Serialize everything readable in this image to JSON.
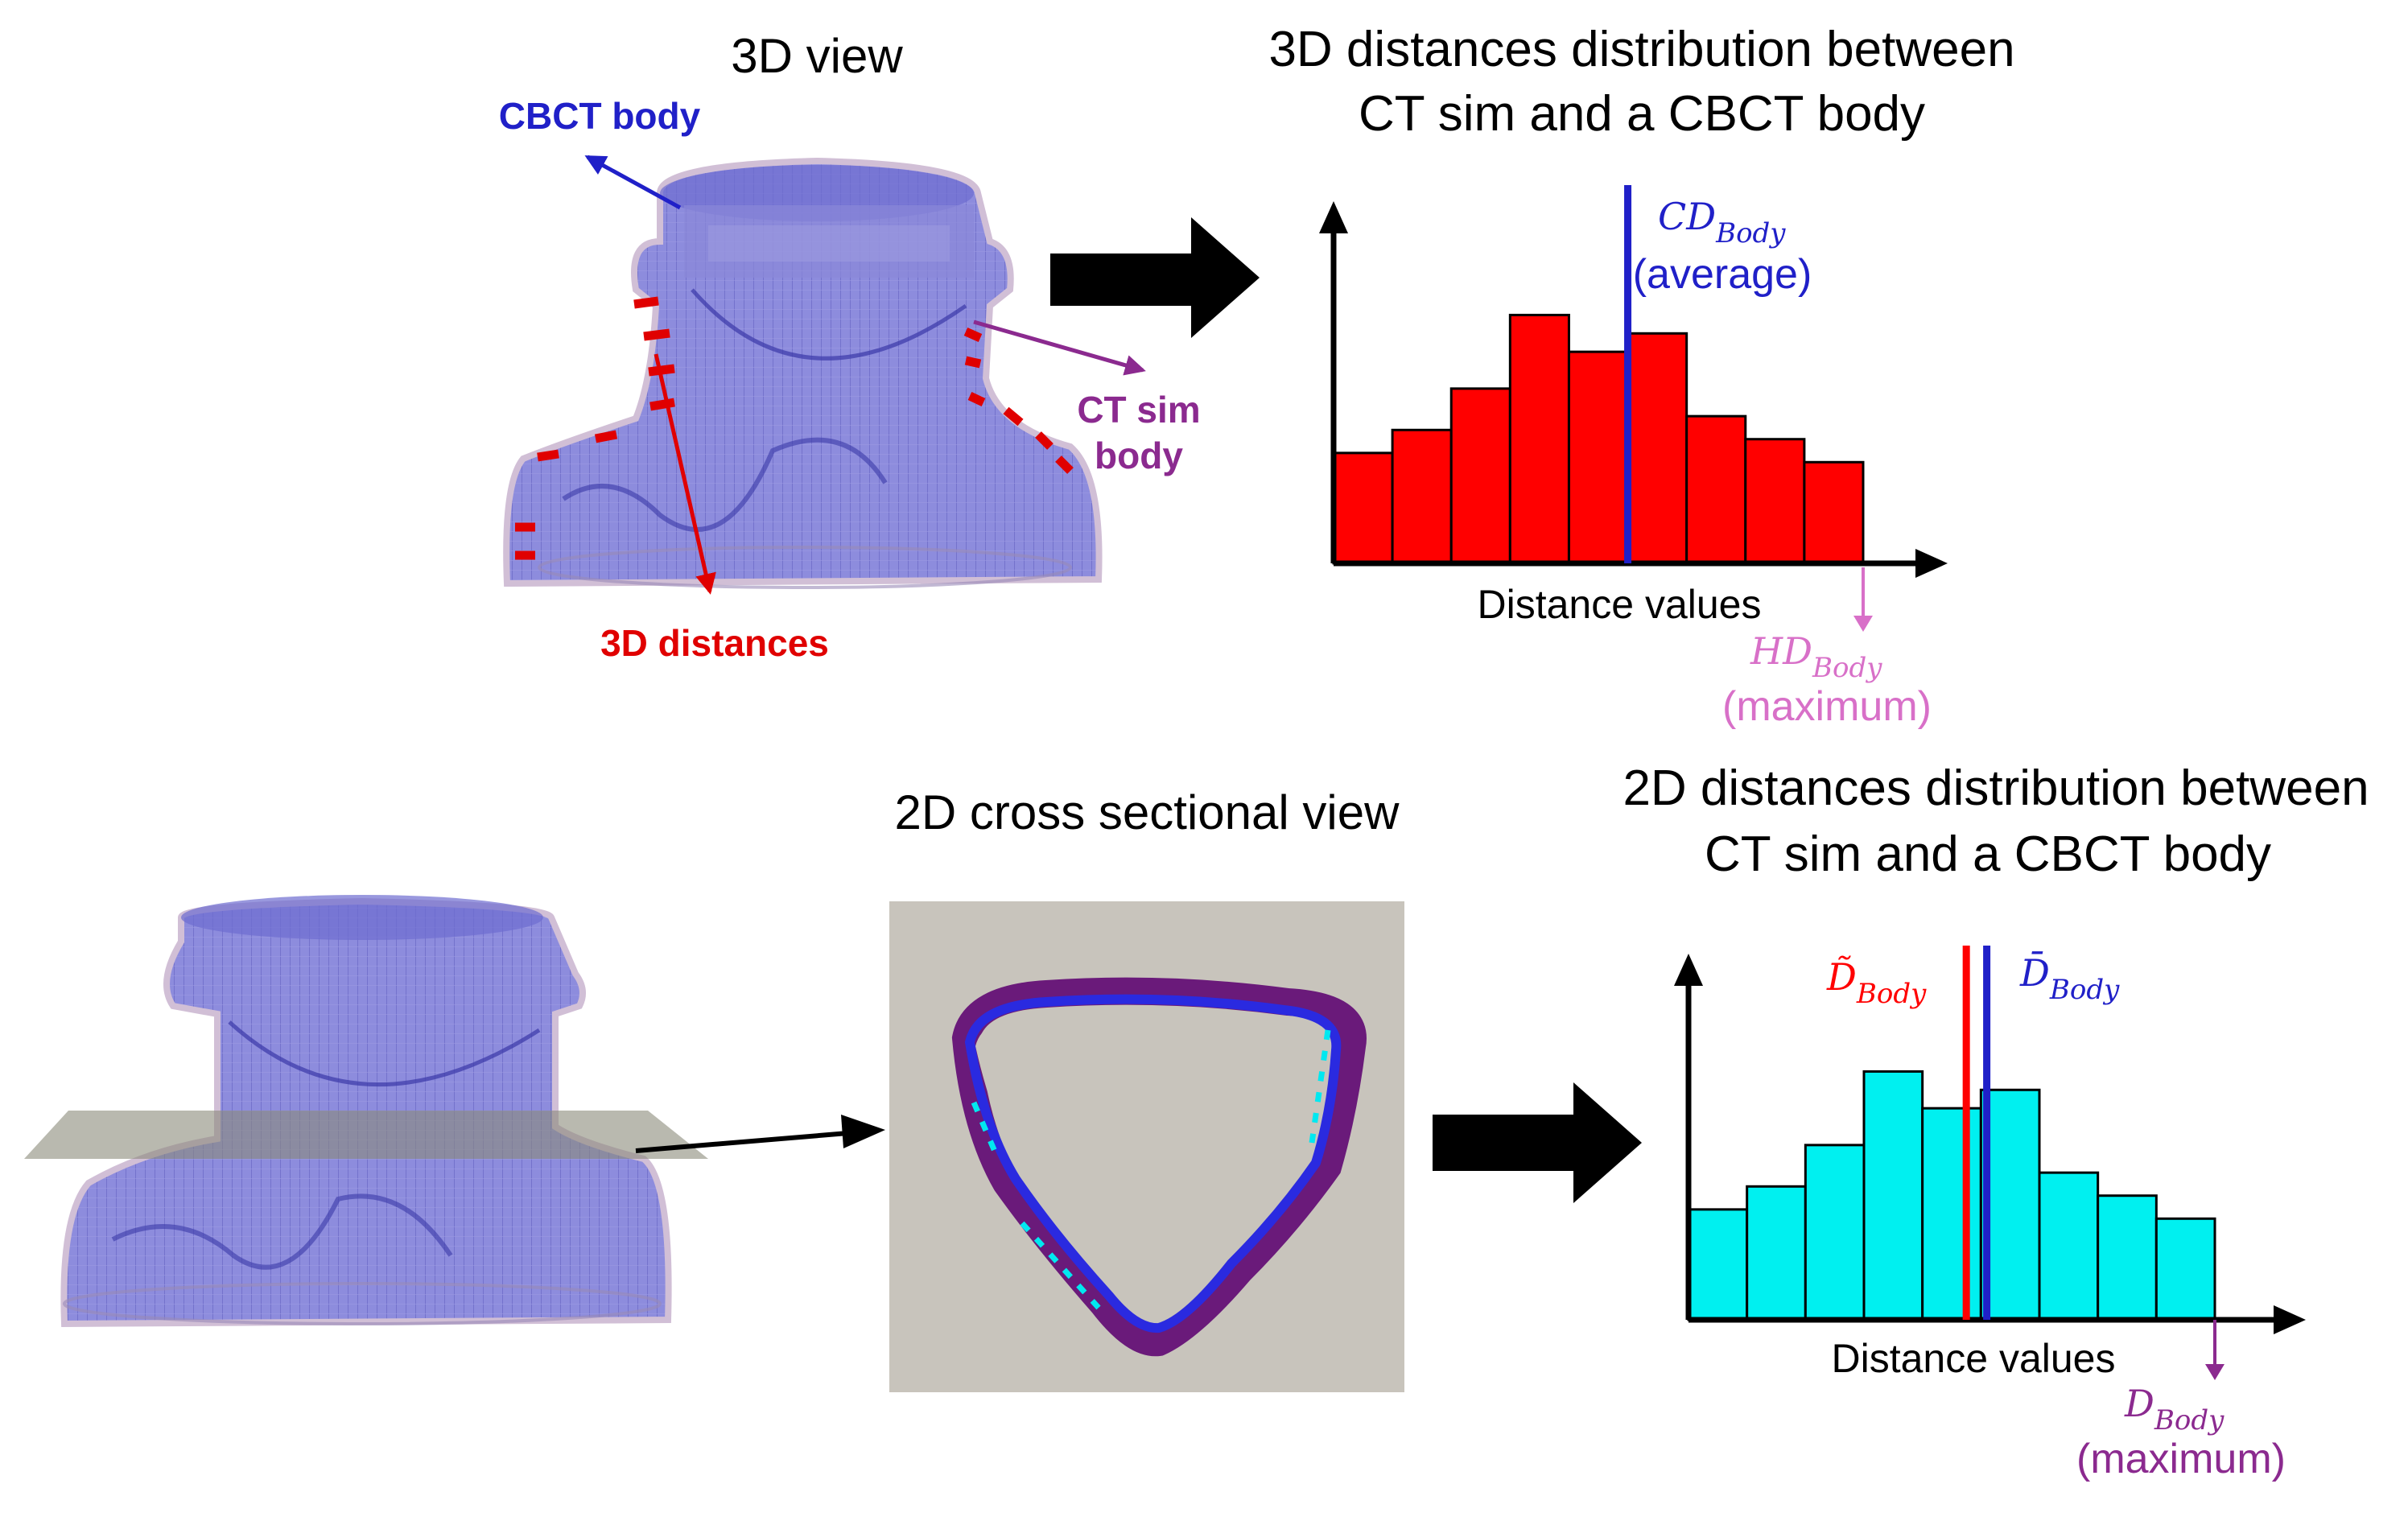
{
  "colors": {
    "cbct": "#2020c8",
    "ctsim": "#8b2a8f",
    "distance": "#e00000",
    "hd": "#d870c8",
    "cyan": "#00f0f0",
    "red_bar": "#ff0000"
  },
  "top": {
    "view_title": "3D view",
    "cbct_label": "CBCT body",
    "ctsim_line1": "CT sim",
    "ctsim_line2": "body",
    "distances_label": "3D distances",
    "chart_title_line1": "3D distances distribution between",
    "chart_title_line2": "CT sim and a CBCT body",
    "mean_symbol": "CD",
    "mean_sub": "Body",
    "mean_note": "(average)",
    "max_symbol": "HD",
    "max_sub": "Body",
    "max_note": "(maximum)",
    "xlabel": "Distance values"
  },
  "bottom": {
    "section_title": "2D cross sectional view",
    "chart_title_line1": "2D distances distribution between",
    "chart_title_line2": "CT sim and a CBCT body",
    "median_symbol": "D̃",
    "median_sub": "Body",
    "mean_symbol": "D̄",
    "mean_sub": "Body",
    "max_symbol": "D",
    "max_sub": "Body",
    "max_note": "(maximum)",
    "xlabel": "Distance values"
  },
  "chart_data": [
    {
      "type": "bar",
      "values": [
        2.4,
        2.9,
        3.8,
        5.4,
        4.6,
        5.0,
        3.2,
        2.7,
        2.2
      ],
      "ylim": [
        0,
        7
      ],
      "xlabel": "Distance values",
      "title": "3D distances distribution between CT sim and a CBCT body",
      "marker_index": 5.0
    },
    {
      "type": "bar",
      "values": [
        2.4,
        2.9,
        3.8,
        5.4,
        4.6,
        5.0,
        3.2,
        2.7,
        2.2
      ],
      "ylim": [
        0,
        7
      ],
      "xlabel": "Distance values",
      "title": "2D distances distribution between CT sim and a CBCT body",
      "marker_indices": [
        4.75,
        5.1
      ]
    }
  ]
}
